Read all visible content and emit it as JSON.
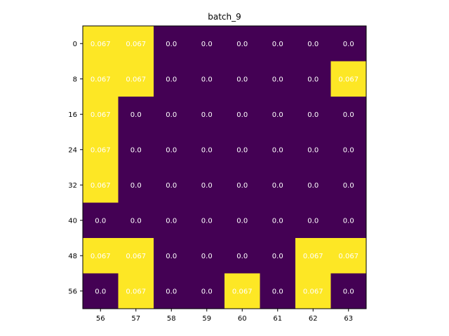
{
  "chart_data": {
    "type": "heatmap",
    "title": "batch_9",
    "xlabel": "",
    "ylabel": "",
    "x_tick_labels": [
      "56",
      "57",
      "58",
      "59",
      "60",
      "61",
      "62",
      "63"
    ],
    "y_tick_labels": [
      "0",
      "8",
      "16",
      "24",
      "32",
      "40",
      "48",
      "56"
    ],
    "values": [
      [
        0.067,
        0.067,
        0.0,
        0.0,
        0.0,
        0.0,
        0.0,
        0.0
      ],
      [
        0.067,
        0.067,
        0.0,
        0.0,
        0.0,
        0.0,
        0.0,
        0.067
      ],
      [
        0.067,
        0.0,
        0.0,
        0.0,
        0.0,
        0.0,
        0.0,
        0.0
      ],
      [
        0.067,
        0.0,
        0.0,
        0.0,
        0.0,
        0.0,
        0.0,
        0.0
      ],
      [
        0.067,
        0.0,
        0.0,
        0.0,
        0.0,
        0.0,
        0.0,
        0.0
      ],
      [
        0.0,
        0.0,
        0.0,
        0.0,
        0.0,
        0.0,
        0.0,
        0.0
      ],
      [
        0.067,
        0.067,
        0.0,
        0.0,
        0.0,
        0.0,
        0.067,
        0.067
      ],
      [
        0.0,
        0.067,
        0.0,
        0.0,
        0.067,
        0.0,
        0.067,
        0.0
      ]
    ],
    "cell_labels": [
      [
        "0.067",
        "0.067",
        "0.0",
        "0.0",
        "0.0",
        "0.0",
        "0.0",
        "0.0"
      ],
      [
        "0.067",
        "0.067",
        "0.0",
        "0.0",
        "0.0",
        "0.0",
        "0.0",
        "0.067"
      ],
      [
        "0.067",
        "0.0",
        "0.0",
        "0.0",
        "0.0",
        "0.0",
        "0.0",
        "0.0"
      ],
      [
        "0.067",
        "0.0",
        "0.0",
        "0.0",
        "0.0",
        "0.0",
        "0.0",
        "0.0"
      ],
      [
        "0.067",
        "0.0",
        "0.0",
        "0.0",
        "0.0",
        "0.0",
        "0.0",
        "0.0"
      ],
      [
        "0.0",
        "0.0",
        "0.0",
        "0.0",
        "0.0",
        "0.0",
        "0.0",
        "0.0"
      ],
      [
        "0.067",
        "0.067",
        "0.0",
        "0.0",
        "0.0",
        "0.0",
        "0.067",
        "0.067"
      ],
      [
        "0.0",
        "0.067",
        "0.0",
        "0.0",
        "0.067",
        "0.0",
        "0.067",
        "0.0"
      ]
    ],
    "colormap": "viridis",
    "color_low": "#440154",
    "color_high": "#fde725",
    "value_range": [
      0.0,
      0.067
    ],
    "grid": false,
    "colorbar": false
  }
}
